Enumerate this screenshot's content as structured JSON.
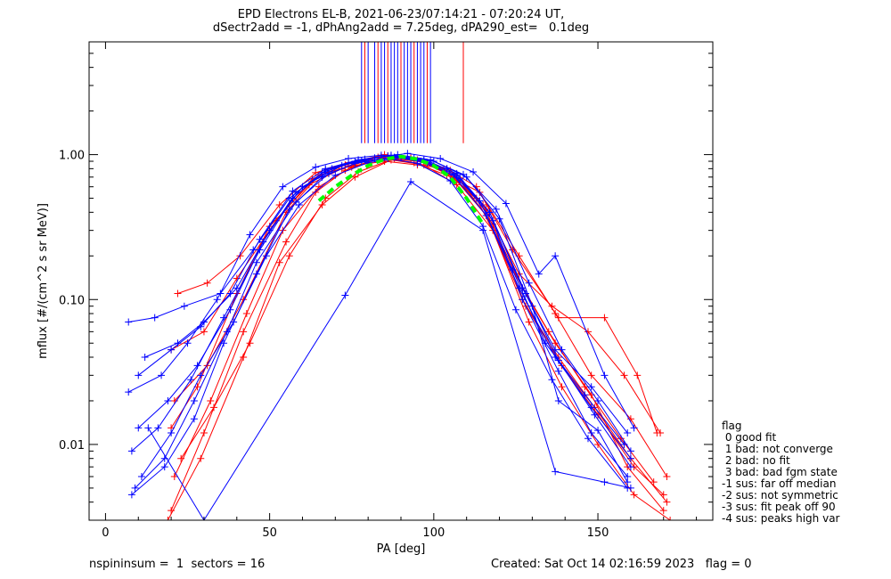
{
  "title_line1": "EPD Electrons EL-B, 2021-06-23/07:14:21 - 07:20:24 UT,",
  "title_line2": "dSectr2add = -1, dPhAng2add = 7.25deg, dPA290_est=   0.1deg",
  "footer_left": "nspininsum =  1  sectors = 16",
  "footer_right": "Created: Sat Oct 14 02:16:59 2023   flag = 0",
  "legend": {
    "title": "flag",
    "items": [
      " 0 good fit",
      " 1 bad: not converge",
      " 2 bad: no fit",
      " 3 bad: bad fgm state",
      "-1 sus: far off median",
      "-2 sus: not symmetric",
      "-3 sus: fit peak off 90",
      "-4 sus: peaks high var"
    ]
  },
  "colors": {
    "red": "#ff0000",
    "blue": "#0000ff",
    "fit": "#00ff00",
    "axis": "#000000"
  },
  "chart_data": {
    "type": "line",
    "xlabel": "PA [deg]",
    "ylabel": "mflux [#/(cm^2 s sr MeV)]",
    "xlim": [
      -5,
      185
    ],
    "ylim": [
      0.003,
      6
    ],
    "yscale": "log",
    "xticks": [
      0,
      50,
      100,
      150
    ],
    "yticks": [
      {
        "value": 0.01,
        "label": "0.01"
      },
      {
        "value": 0.1,
        "label": "0.10"
      },
      {
        "value": 1,
        "label": "1.00"
      }
    ],
    "fit_curve": {
      "x": [
        65,
        70,
        75,
        80,
        85,
        90,
        95,
        100,
        105,
        110,
        115
      ],
      "y": [
        0.48,
        0.6,
        0.72,
        0.84,
        0.93,
        0.97,
        0.93,
        0.84,
        0.7,
        0.5,
        0.33
      ]
    },
    "vertical_markers": {
      "ymin": 1.2,
      "blue": [
        78,
        80,
        82,
        84,
        85,
        87,
        88,
        89,
        91,
        92,
        93,
        95,
        96,
        97,
        99
      ],
      "red": [
        79,
        83,
        86,
        90,
        94,
        98,
        109
      ]
    },
    "series": [
      {
        "color": "red",
        "x": [
          20,
          30,
          42,
          55,
          64,
          73,
          84,
          93,
          104,
          115,
          127,
          137,
          148,
          159,
          170
        ],
        "y": [
          0.0035,
          0.012,
          0.06,
          0.25,
          0.55,
          0.78,
          0.95,
          0.95,
          0.75,
          0.45,
          0.12,
          0.05,
          0.022,
          0.007,
          0.0035
        ]
      },
      {
        "color": "red",
        "x": [
          21,
          32,
          43,
          54,
          65,
          75,
          86,
          96,
          106,
          116,
          127,
          138,
          149,
          160,
          171
        ],
        "y": [
          0.006,
          0.02,
          0.08,
          0.3,
          0.6,
          0.82,
          0.98,
          0.9,
          0.7,
          0.38,
          0.1,
          0.04,
          0.018,
          0.008,
          0.004
        ]
      },
      {
        "color": "red",
        "x": [
          22,
          31,
          41,
          53,
          64,
          74,
          85,
          95,
          105,
          116,
          126,
          136,
          147,
          158,
          169
        ],
        "y": [
          0.11,
          0.13,
          0.2,
          0.45,
          0.75,
          0.88,
          1.0,
          0.92,
          0.78,
          0.42,
          0.15,
          0.09,
          0.06,
          0.03,
          0.012
        ]
      },
      {
        "color": "red",
        "x": [
          20,
          30,
          40,
          52,
          63,
          73,
          84,
          94,
          104,
          114,
          126,
          137,
          148,
          160,
          171
        ],
        "y": [
          0.045,
          0.06,
          0.14,
          0.35,
          0.68,
          0.85,
          0.97,
          0.88,
          0.72,
          0.55,
          0.2,
          0.08,
          0.03,
          0.015,
          0.006
        ]
      },
      {
        "color": "red",
        "x": [
          19,
          29,
          42,
          53,
          66,
          76,
          87,
          97,
          107,
          118,
          129,
          139,
          150,
          161,
          172
        ],
        "y": [
          0.003,
          0.008,
          0.04,
          0.18,
          0.45,
          0.7,
          0.92,
          0.85,
          0.62,
          0.3,
          0.07,
          0.025,
          0.01,
          0.0045,
          0.003
        ]
      },
      {
        "color": "red",
        "x": [
          21,
          31,
          42,
          55,
          65,
          74,
          85,
          95,
          104,
          113,
          124,
          138,
          152,
          162,
          168
        ],
        "y": [
          0.02,
          0.035,
          0.1,
          0.4,
          0.72,
          0.83,
          0.9,
          0.85,
          0.8,
          0.6,
          0.22,
          0.075,
          0.075,
          0.03,
          0.012
        ]
      },
      {
        "color": "red",
        "x": [
          23,
          33,
          44,
          56,
          67,
          77,
          88,
          98,
          108,
          118,
          128,
          139,
          150,
          161,
          170
        ],
        "y": [
          0.008,
          0.018,
          0.05,
          0.2,
          0.5,
          0.76,
          0.94,
          0.88,
          0.66,
          0.33,
          0.09,
          0.035,
          0.016,
          0.007,
          0.0045
        ]
      },
      {
        "color": "red",
        "x": [
          20,
          28,
          40,
          50,
          62,
          72,
          83,
          93,
          103,
          113,
          124,
          135,
          146,
          157,
          167
        ],
        "y": [
          0.013,
          0.025,
          0.11,
          0.32,
          0.62,
          0.8,
          0.96,
          0.94,
          0.79,
          0.5,
          0.16,
          0.06,
          0.025,
          0.011,
          0.0055
        ]
      },
      {
        "color": "blue",
        "x": [
          7,
          15,
          24,
          35,
          45,
          56,
          66,
          76,
          86,
          96,
          106,
          116,
          126,
          137,
          148,
          160
        ],
        "y": [
          0.07,
          0.075,
          0.09,
          0.11,
          0.22,
          0.5,
          0.75,
          0.9,
          0.98,
          0.9,
          0.72,
          0.38,
          0.12,
          0.04,
          0.018,
          0.008
        ]
      },
      {
        "color": "blue",
        "x": [
          8,
          16,
          26,
          36,
          47,
          57,
          67,
          77,
          87,
          97,
          107,
          117,
          128,
          138,
          149,
          160
        ],
        "y": [
          0.009,
          0.013,
          0.028,
          0.075,
          0.22,
          0.5,
          0.78,
          0.92,
          0.99,
          0.93,
          0.74,
          0.4,
          0.11,
          0.038,
          0.016,
          0.007
        ]
      },
      {
        "color": "blue",
        "x": [
          9,
          18,
          27,
          37,
          46,
          58,
          68,
          78,
          88,
          98,
          108,
          118,
          127,
          138,
          148,
          159
        ],
        "y": [
          0.005,
          0.008,
          0.02,
          0.06,
          0.18,
          0.47,
          0.74,
          0.9,
          0.96,
          0.88,
          0.68,
          0.35,
          0.1,
          0.032,
          0.012,
          0.006
        ]
      },
      {
        "color": "blue",
        "x": [
          10,
          19,
          28,
          38,
          48,
          58,
          69,
          79,
          89,
          99,
          109,
          119,
          129,
          139,
          150,
          160
        ],
        "y": [
          0.013,
          0.02,
          0.035,
          0.085,
          0.25,
          0.55,
          0.8,
          0.93,
          1.0,
          0.92,
          0.73,
          0.42,
          0.13,
          0.045,
          0.02,
          0.009
        ]
      },
      {
        "color": "blue",
        "x": [
          7,
          17,
          25,
          34,
          44,
          54,
          64,
          74,
          84,
          94,
          104,
          114,
          124,
          134,
          146,
          158
        ],
        "y": [
          0.023,
          0.03,
          0.05,
          0.1,
          0.28,
          0.6,
          0.82,
          0.94,
          0.99,
          0.95,
          0.8,
          0.48,
          0.16,
          0.05,
          0.022,
          0.01
        ]
      },
      {
        "color": "blue",
        "x": [
          11,
          20,
          29,
          39,
          49,
          59,
          70,
          80,
          90,
          100,
          110,
          120,
          130,
          138,
          150,
          159
        ],
        "y": [
          0.006,
          0.012,
          0.03,
          0.07,
          0.2,
          0.45,
          0.72,
          0.88,
          0.95,
          0.9,
          0.7,
          0.36,
          0.09,
          0.02,
          0.0125,
          0.0055
        ]
      },
      {
        "color": "blue",
        "x": [
          12,
          22,
          30,
          40,
          50,
          60,
          72,
          82,
          92,
          102,
          112,
          122,
          132,
          137,
          152,
          161
        ],
        "y": [
          0.04,
          0.05,
          0.07,
          0.12,
          0.3,
          0.6,
          0.84,
          0.95,
          1.02,
          0.94,
          0.76,
          0.46,
          0.15,
          0.2,
          0.03,
          0.013
        ]
      },
      {
        "color": "blue",
        "x": [
          13,
          30,
          73,
          93,
          115,
          137,
          152,
          160
        ],
        "y": [
          0.013,
          0.003,
          0.107,
          0.65,
          0.3,
          0.0065,
          0.0055,
          0.005
        ]
      },
      {
        "color": "blue",
        "x": [
          8,
          18,
          27,
          36,
          46,
          56,
          66,
          76,
          86,
          95,
          105,
          115,
          125,
          136,
          147,
          159
        ],
        "y": [
          0.0045,
          0.007,
          0.015,
          0.05,
          0.15,
          0.42,
          0.7,
          0.87,
          0.94,
          0.87,
          0.66,
          0.32,
          0.085,
          0.028,
          0.011,
          0.005
        ]
      },
      {
        "color": "blue",
        "x": [
          10,
          20,
          29,
          38,
          47,
          57,
          67,
          77,
          87,
          97,
          107,
          117,
          127,
          137,
          148,
          159
        ],
        "y": [
          0.03,
          0.045,
          0.065,
          0.11,
          0.26,
          0.56,
          0.8,
          0.92,
          0.98,
          0.91,
          0.72,
          0.4,
          0.12,
          0.045,
          0.025,
          0.012
        ]
      }
    ]
  }
}
